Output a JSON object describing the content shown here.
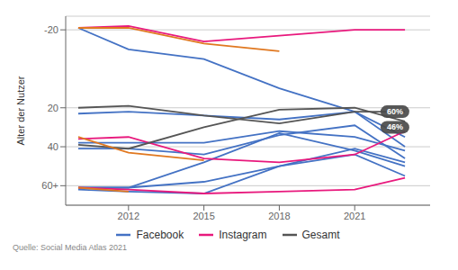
{
  "chart_data": {
    "type": "line",
    "y_label": "Alter der Nutzer",
    "source": "Quelle: Social Media Atlas 2021",
    "x": [
      2010,
      2012,
      2015,
      2018,
      2021,
      2023
    ],
    "xlim": [
      2009.5,
      2024
    ],
    "xticks": [
      2012,
      2015,
      2018,
      2021
    ],
    "ylim": [
      70,
      -27
    ],
    "yticks": [
      -20,
      20,
      40,
      {
        "value": 60,
        "label": "60+"
      }
    ],
    "grid": "y",
    "legend": "bottom",
    "series": [
      {
        "name": "Facebook",
        "color": "#4472c4",
        "values": [
          -21,
          -10,
          -5,
          10,
          22,
          35
        ]
      },
      {
        "name": "Facebook",
        "color": "#4472c4",
        "values": [
          23,
          22,
          24,
          26,
          22,
          40
        ]
      },
      {
        "name": "Facebook",
        "color": "#4472c4",
        "values": [
          38,
          38,
          38,
          32,
          35,
          42
        ]
      },
      {
        "name": "Facebook",
        "color": "#4472c4",
        "values": [
          41,
          41,
          44,
          34,
          29,
          46
        ]
      },
      {
        "name": "Facebook",
        "color": "#4472c4",
        "values": [
          61,
          61,
          48,
          33,
          42,
          50
        ]
      },
      {
        "name": "Facebook",
        "color": "#4472c4",
        "values": [
          61,
          61,
          58,
          50,
          41,
          48
        ]
      },
      {
        "name": "Facebook",
        "color": "#4472c4",
        "values": [
          62,
          63,
          64,
          50,
          44,
          55
        ]
      },
      {
        "name": "Instagram",
        "color": "#e8197d",
        "values": [
          -21,
          -22,
          -14,
          -17,
          -20,
          -20
        ]
      },
      {
        "name": "Instagram",
        "color": "#e8197d",
        "values": [
          36,
          35,
          46,
          48,
          44,
          32
        ]
      },
      {
        "name": "Instagram",
        "color": "#e8197d",
        "values": [
          61,
          62,
          64,
          63,
          62,
          56
        ]
      },
      {
        "name": "Gesamt",
        "color": "#555555",
        "values": [
          20,
          19,
          24,
          28,
          22,
          22
        ]
      },
      {
        "name": "Gesamt",
        "color": "#555555",
        "values": [
          39,
          41,
          30,
          21,
          20,
          27
        ]
      },
      {
        "color": "#e07820",
        "values": [
          -21,
          -21,
          -13,
          -9,
          null,
          null
        ]
      },
      {
        "color": "#e07820",
        "values": [
          35,
          43,
          47,
          null,
          null,
          null
        ]
      },
      {
        "color": "#e07820",
        "values": [
          61,
          63,
          null,
          null,
          null,
          null
        ]
      }
    ],
    "annotations": [
      {
        "text": "60%",
        "x": 2022.6,
        "y": 22
      },
      {
        "text": "46%",
        "x": 2022.6,
        "y": 30
      }
    ]
  }
}
